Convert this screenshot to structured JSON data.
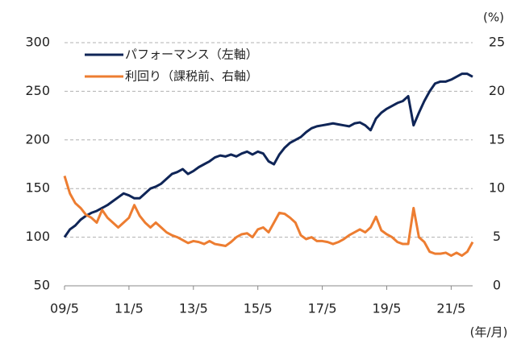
{
  "chart_data": {
    "type": "line",
    "y2_unit": "(%)",
    "x_unit": "(年/月)",
    "categories": [
      "09/5",
      null,
      null,
      null,
      null,
      null,
      null,
      null,
      null,
      null,
      null,
      null,
      "11/5",
      null,
      null,
      null,
      null,
      null,
      null,
      null,
      null,
      null,
      null,
      null,
      "13/5",
      null,
      null,
      null,
      null,
      null,
      null,
      null,
      null,
      null,
      null,
      null,
      "15/5",
      null,
      null,
      null,
      null,
      null,
      null,
      null,
      null,
      null,
      null,
      null,
      "17/5",
      null,
      null,
      null,
      null,
      null,
      null,
      null,
      null,
      null,
      null,
      null,
      "19/5",
      null,
      null,
      null,
      null,
      null,
      null,
      null,
      null,
      null,
      null,
      null,
      "21/5",
      null,
      null,
      null,
      null
    ],
    "series": [
      {
        "name": "パフォーマンス（左軸）",
        "color": "#0f2557",
        "values": [
          100,
          108,
          112,
          118,
          122,
          125,
          127,
          130,
          133,
          137,
          141,
          145,
          143,
          140,
          140,
          145,
          150,
          152,
          155,
          160,
          165,
          167,
          170,
          165,
          168,
          172,
          175,
          178,
          182,
          184,
          183,
          185,
          183,
          186,
          188,
          185,
          188,
          186,
          178,
          175,
          185,
          192,
          197,
          200,
          203,
          208,
          212,
          214,
          215,
          216,
          217,
          216,
          215,
          214,
          217,
          218,
          215,
          210,
          222,
          228,
          232,
          235,
          238,
          240,
          245,
          215,
          228,
          240,
          250,
          258,
          260,
          260,
          262,
          265,
          268,
          268,
          265
        ]
      },
      {
        "name": "利回り（課税前、右軸）",
        "color": "#ed7d31",
        "axis": "y2",
        "values": [
          11.3,
          9.5,
          8.5,
          8.0,
          7.3,
          7.0,
          6.5,
          7.8,
          7.0,
          6.5,
          6.0,
          6.5,
          7.0,
          8.3,
          7.2,
          6.5,
          6.0,
          6.5,
          6.0,
          5.5,
          5.2,
          5.0,
          4.7,
          4.4,
          4.6,
          4.5,
          4.3,
          4.6,
          4.3,
          4.2,
          4.1,
          4.5,
          5.0,
          5.3,
          5.4,
          5.0,
          5.8,
          6.0,
          5.5,
          6.5,
          7.5,
          7.4,
          7.0,
          6.5,
          5.2,
          4.8,
          5.0,
          4.6,
          4.6,
          4.5,
          4.3,
          4.5,
          4.8,
          5.2,
          5.5,
          5.8,
          5.5,
          6.0,
          7.1,
          5.7,
          5.3,
          5.0,
          4.5,
          4.3,
          4.3,
          8.0,
          5.0,
          4.5,
          3.5,
          3.3,
          3.3,
          3.4,
          3.1,
          3.4,
          3.1,
          3.5,
          4.5
        ]
      }
    ],
    "ylim": [
      50,
      300
    ],
    "yticks": [
      50,
      100,
      150,
      200,
      250,
      300
    ],
    "y2lim": [
      0,
      25
    ],
    "y2ticks": [
      0,
      5,
      10,
      15,
      20,
      25
    ],
    "grid": true,
    "legend": "top-left"
  }
}
